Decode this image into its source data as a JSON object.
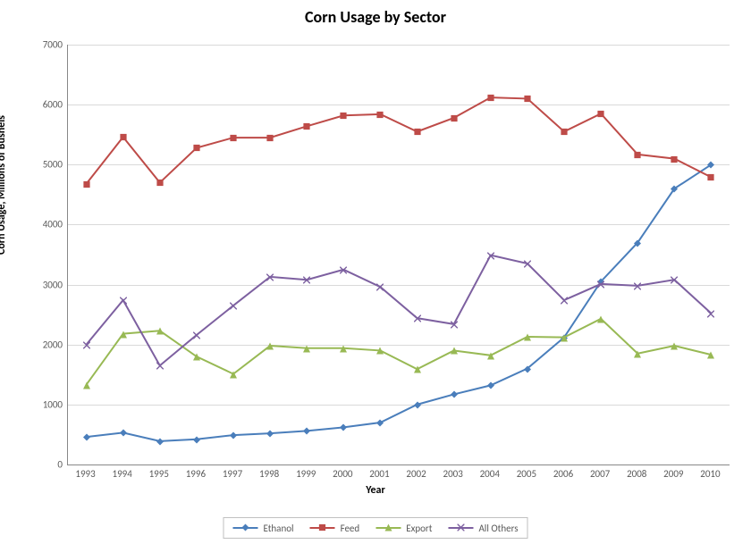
{
  "chart": {
    "type": "line",
    "title": "Corn Usage by Sector",
    "title_fontsize": 18,
    "title_weight": "bold",
    "xlabel": "Year",
    "ylabel": "Corn Usage, Millions of Bushels",
    "axis_label_fontsize": 12,
    "tick_fontsize": 11,
    "background_color": "#ffffff",
    "grid_color": "#d9d9d9",
    "axis_color": "#888888",
    "text_color": "#595959",
    "ylim": [
      0,
      7000
    ],
    "ytick_step": 1000,
    "yticks": [
      0,
      1000,
      2000,
      3000,
      4000,
      5000,
      6000,
      7000
    ],
    "categories": [
      "1993",
      "1994",
      "1995",
      "1996",
      "1997",
      "1998",
      "1999",
      "2000",
      "2001",
      "2002",
      "2003",
      "2004",
      "2005",
      "2006",
      "2007",
      "2008",
      "2009",
      "2010"
    ],
    "marker_size": 8,
    "line_width": 2,
    "legend_position": "bottom",
    "series": [
      {
        "name": "Ethanol",
        "color": "#4a7ebb",
        "marker": "diamond",
        "values": [
          460,
          530,
          390,
          420,
          490,
          520,
          560,
          620,
          700,
          1000,
          1170,
          1320,
          1600,
          2120,
          3050,
          3700,
          4600,
          5000
        ]
      },
      {
        "name": "Feed",
        "color": "#be4b48",
        "marker": "square",
        "values": [
          4680,
          5460,
          4700,
          5280,
          5450,
          5450,
          5640,
          5820,
          5840,
          5550,
          5780,
          6120,
          6100,
          5550,
          5850,
          5170,
          5100,
          4790
        ]
      },
      {
        "name": "Export",
        "color": "#98b954",
        "marker": "triangle",
        "values": [
          1330,
          2180,
          2230,
          1800,
          1510,
          1980,
          1940,
          1940,
          1900,
          1590,
          1900,
          1820,
          2130,
          2120,
          2430,
          1850,
          1980,
          1830
        ]
      },
      {
        "name": "All Others",
        "color": "#7d60a0",
        "marker": "x",
        "values": [
          2000,
          2740,
          1650,
          2160,
          2650,
          3130,
          3080,
          3250,
          2960,
          2440,
          2340,
          3490,
          3350,
          2740,
          3010,
          2980,
          3080,
          2520
        ]
      }
    ]
  }
}
